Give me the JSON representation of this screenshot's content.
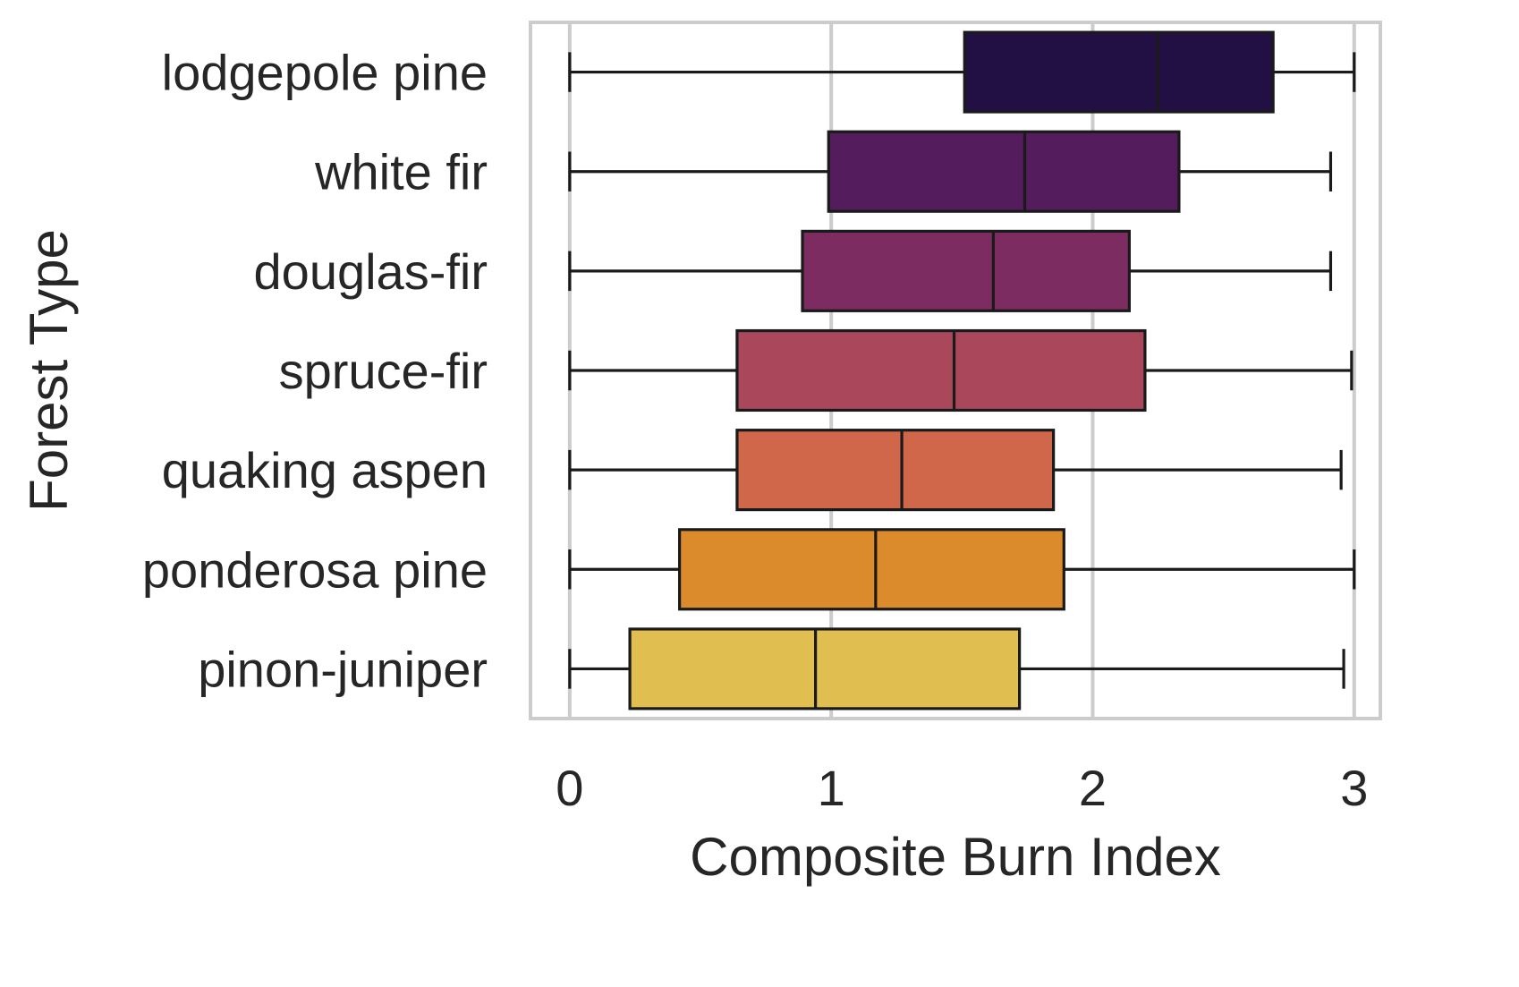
{
  "chart_data": {
    "type": "box",
    "orientation": "horizontal",
    "title": "",
    "xlabel": "Composite Burn Index",
    "ylabel": "Forest Type",
    "xlim": [
      -0.15,
      3.1
    ],
    "xticks": [
      0,
      1,
      2,
      3
    ],
    "grid": "vertical",
    "legend": "none",
    "categories": [
      "lodgepole pine",
      "white fir",
      "douglas-fir",
      "spruce-fir",
      "quaking aspen",
      "ponderosa pine",
      "pinon-juniper"
    ],
    "boxes": [
      {
        "whislo": 0.0,
        "q1": 1.51,
        "med": 2.25,
        "q3": 2.69,
        "whishi": 3.0,
        "color": "#221044"
      },
      {
        "whislo": 0.0,
        "q1": 0.99,
        "med": 1.74,
        "q3": 2.33,
        "whishi": 2.91,
        "color": "#541b5d"
      },
      {
        "whislo": 0.0,
        "q1": 0.89,
        "med": 1.62,
        "q3": 2.14,
        "whishi": 2.91,
        "color": "#7d2c61"
      },
      {
        "whislo": 0.0,
        "q1": 0.64,
        "med": 1.47,
        "q3": 2.2,
        "whishi": 2.99,
        "color": "#aa475a"
      },
      {
        "whislo": 0.0,
        "q1": 0.64,
        "med": 1.27,
        "q3": 1.85,
        "whishi": 2.95,
        "color": "#d0674a"
      },
      {
        "whislo": 0.0,
        "q1": 0.42,
        "med": 1.17,
        "q3": 1.89,
        "whishi": 3.0,
        "color": "#dc8b2c"
      },
      {
        "whislo": 0.0,
        "q1": 0.23,
        "med": 0.94,
        "q3": 1.72,
        "whishi": 2.96,
        "color": "#e0be50"
      }
    ]
  }
}
